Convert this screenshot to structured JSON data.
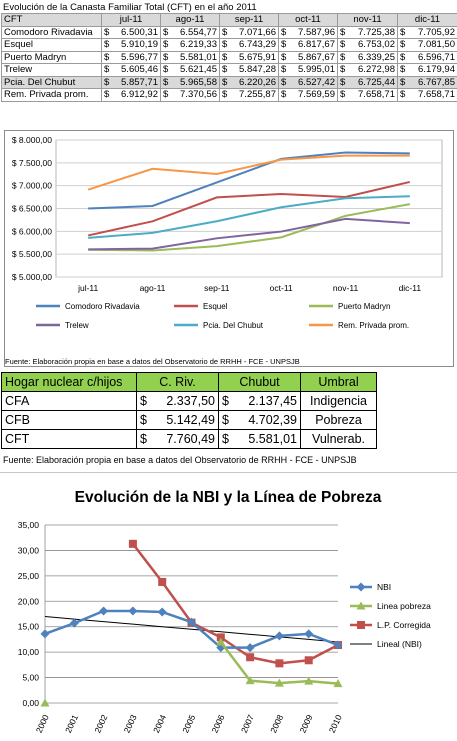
{
  "cft": {
    "title": "Evolución de la Canasta Familiar Total (CFT) en el año 2011",
    "header_label": "CFT",
    "currency": "$",
    "months": [
      "jul-11",
      "ago-11",
      "sep-11",
      "oct-11",
      "nov-11",
      "dic-11"
    ],
    "rows": [
      {
        "name": "Comodoro Rivadavia",
        "values": [
          "6.500,31",
          "6.554,77",
          "7.071,66",
          "7.587,96",
          "7.725,38",
          "7.705,92"
        ],
        "highlight": false
      },
      {
        "name": "Esquel",
        "values": [
          "5.910,19",
          "6.219,33",
          "6.743,29",
          "6.817,67",
          "6.753,02",
          "7.081,50"
        ],
        "highlight": false
      },
      {
        "name": "Puerto Madryn",
        "values": [
          "5.596,77",
          "5.581,01",
          "5.675,91",
          "5.867,67",
          "6.339,25",
          "6.596,71"
        ],
        "highlight": false
      },
      {
        "name": "Trelew",
        "values": [
          "5.605,46",
          "5.621,45",
          "5.847,28",
          "5.995,01",
          "6.272,98",
          "6.179,94"
        ],
        "highlight": false
      },
      {
        "name": "Pcia. Del Chubut",
        "values": [
          "5.857,71",
          "5.965,58",
          "6.220,26",
          "6.527,42",
          "6.725,44",
          "6.767,85"
        ],
        "highlight": true
      },
      {
        "name": "Rem. Privada prom.",
        "values": [
          "6.912,92",
          "7.370,56",
          "7.255,87",
          "7.569,59",
          "7.658,71",
          "7.658,71"
        ],
        "highlight": false
      }
    ],
    "source": "Fuente: Elaboración propia en base a datos del Observatorio de RRHH - FCE - UNPSJB"
  },
  "chart_data": [
    {
      "type": "line",
      "title": "",
      "xlabel": "",
      "ylabel": "",
      "categories": [
        "jul-11",
        "ago-11",
        "sep-11",
        "oct-11",
        "nov-11",
        "dic-11"
      ],
      "ylim": [
        5000,
        8000
      ],
      "yticks": [
        5000,
        5500,
        6000,
        6500,
        7000,
        7500,
        8000
      ],
      "ytick_labels": [
        "$ 5.000,00",
        "$ 5.500,00",
        "$ 6.000,00",
        "$ 6.500,00",
        "$ 7.000,00",
        "$ 7.500,00",
        "$ 8.000,00"
      ],
      "grid": true,
      "legend_position": "bottom",
      "series": [
        {
          "name": "Comodoro Rivadavia",
          "color": "#4f81bd",
          "values": [
            6500.31,
            6554.77,
            7071.66,
            7587.96,
            7725.38,
            7705.92
          ]
        },
        {
          "name": "Esquel",
          "color": "#c0504d",
          "values": [
            5910.19,
            6219.33,
            6743.29,
            6817.67,
            6753.02,
            7081.5
          ]
        },
        {
          "name": "Puerto Madryn",
          "color": "#9bbb59",
          "values": [
            5596.77,
            5581.01,
            5675.91,
            5867.67,
            6339.25,
            6596.71
          ]
        },
        {
          "name": "Trelew",
          "color": "#8064a2",
          "values": [
            5605.46,
            5621.45,
            5847.28,
            5995.01,
            6272.98,
            6179.94
          ]
        },
        {
          "name": "Pcia. Del Chubut",
          "color": "#4bacc6",
          "values": [
            5857.71,
            5965.58,
            6220.26,
            6527.42,
            6725.44,
            6767.85
          ]
        },
        {
          "name": "Rem. Privada prom.",
          "color": "#f79646",
          "values": [
            6912.92,
            7370.56,
            7255.87,
            7569.59,
            7658.71,
            7658.71
          ]
        }
      ]
    },
    {
      "type": "line",
      "title": "Evolución de la NBI y la Línea de Pobreza",
      "xlabel": "",
      "ylabel": "",
      "categories": [
        "2000",
        "2001",
        "2002",
        "2003",
        "2004",
        "2005",
        "2006",
        "2007",
        "2008",
        "2009",
        "2010"
      ],
      "ylim": [
        0,
        35
      ],
      "yticks": [
        0,
        5,
        10,
        15,
        20,
        25,
        30,
        35
      ],
      "ytick_labels": [
        "0,00",
        "5,00",
        "10,00",
        "15,00",
        "20,00",
        "25,00",
        "30,00",
        "35,00"
      ],
      "grid": true,
      "legend_position": "right",
      "series": [
        {
          "name": "NBI",
          "color": "#4f81bd",
          "marker": "diamond",
          "values": [
            13.6,
            15.7,
            18.1,
            18.1,
            17.9,
            15.9,
            10.9,
            10.9,
            13.2,
            13.6,
            11.4
          ]
        },
        {
          "name": "Linea pobreza",
          "color": "#9bbb59",
          "marker": "triangle",
          "values": [
            0.0,
            null,
            null,
            null,
            null,
            null,
            12.0,
            4.4,
            3.9,
            4.3,
            3.8
          ]
        },
        {
          "name": "L.P. Corregida",
          "color": "#c0504d",
          "marker": "square",
          "values": [
            null,
            null,
            null,
            31.3,
            23.8,
            15.8,
            12.9,
            9.0,
            7.8,
            8.4,
            11.4
          ]
        },
        {
          "name": "Lineal (NBI)",
          "color": "#000000",
          "marker": "none",
          "values": [
            17.0,
            16.5,
            16.0,
            15.5,
            15.0,
            14.5,
            14.0,
            13.5,
            13.0,
            12.5,
            12.0
          ]
        }
      ]
    }
  ],
  "hogar": {
    "headers": [
      "Hogar nuclear c/hijos",
      "C. Riv.",
      "Chubut",
      "Umbral"
    ],
    "currency": "$",
    "rows": [
      {
        "label": "CFA",
        "riv": "2.337,50",
        "chubut": "2.137,45",
        "umbral": "Indigencia"
      },
      {
        "label": "CFB",
        "riv": "5.142,49",
        "chubut": "4.702,39",
        "umbral": "Pobreza"
      },
      {
        "label": "CFT",
        "riv": "7.760,49",
        "chubut": "5.581,01",
        "umbral": "Vulnerab."
      }
    ],
    "source": "Fuente: Elaboración propia en base a datos del Observatorio de RRHH - FCE - UNPSJB"
  }
}
